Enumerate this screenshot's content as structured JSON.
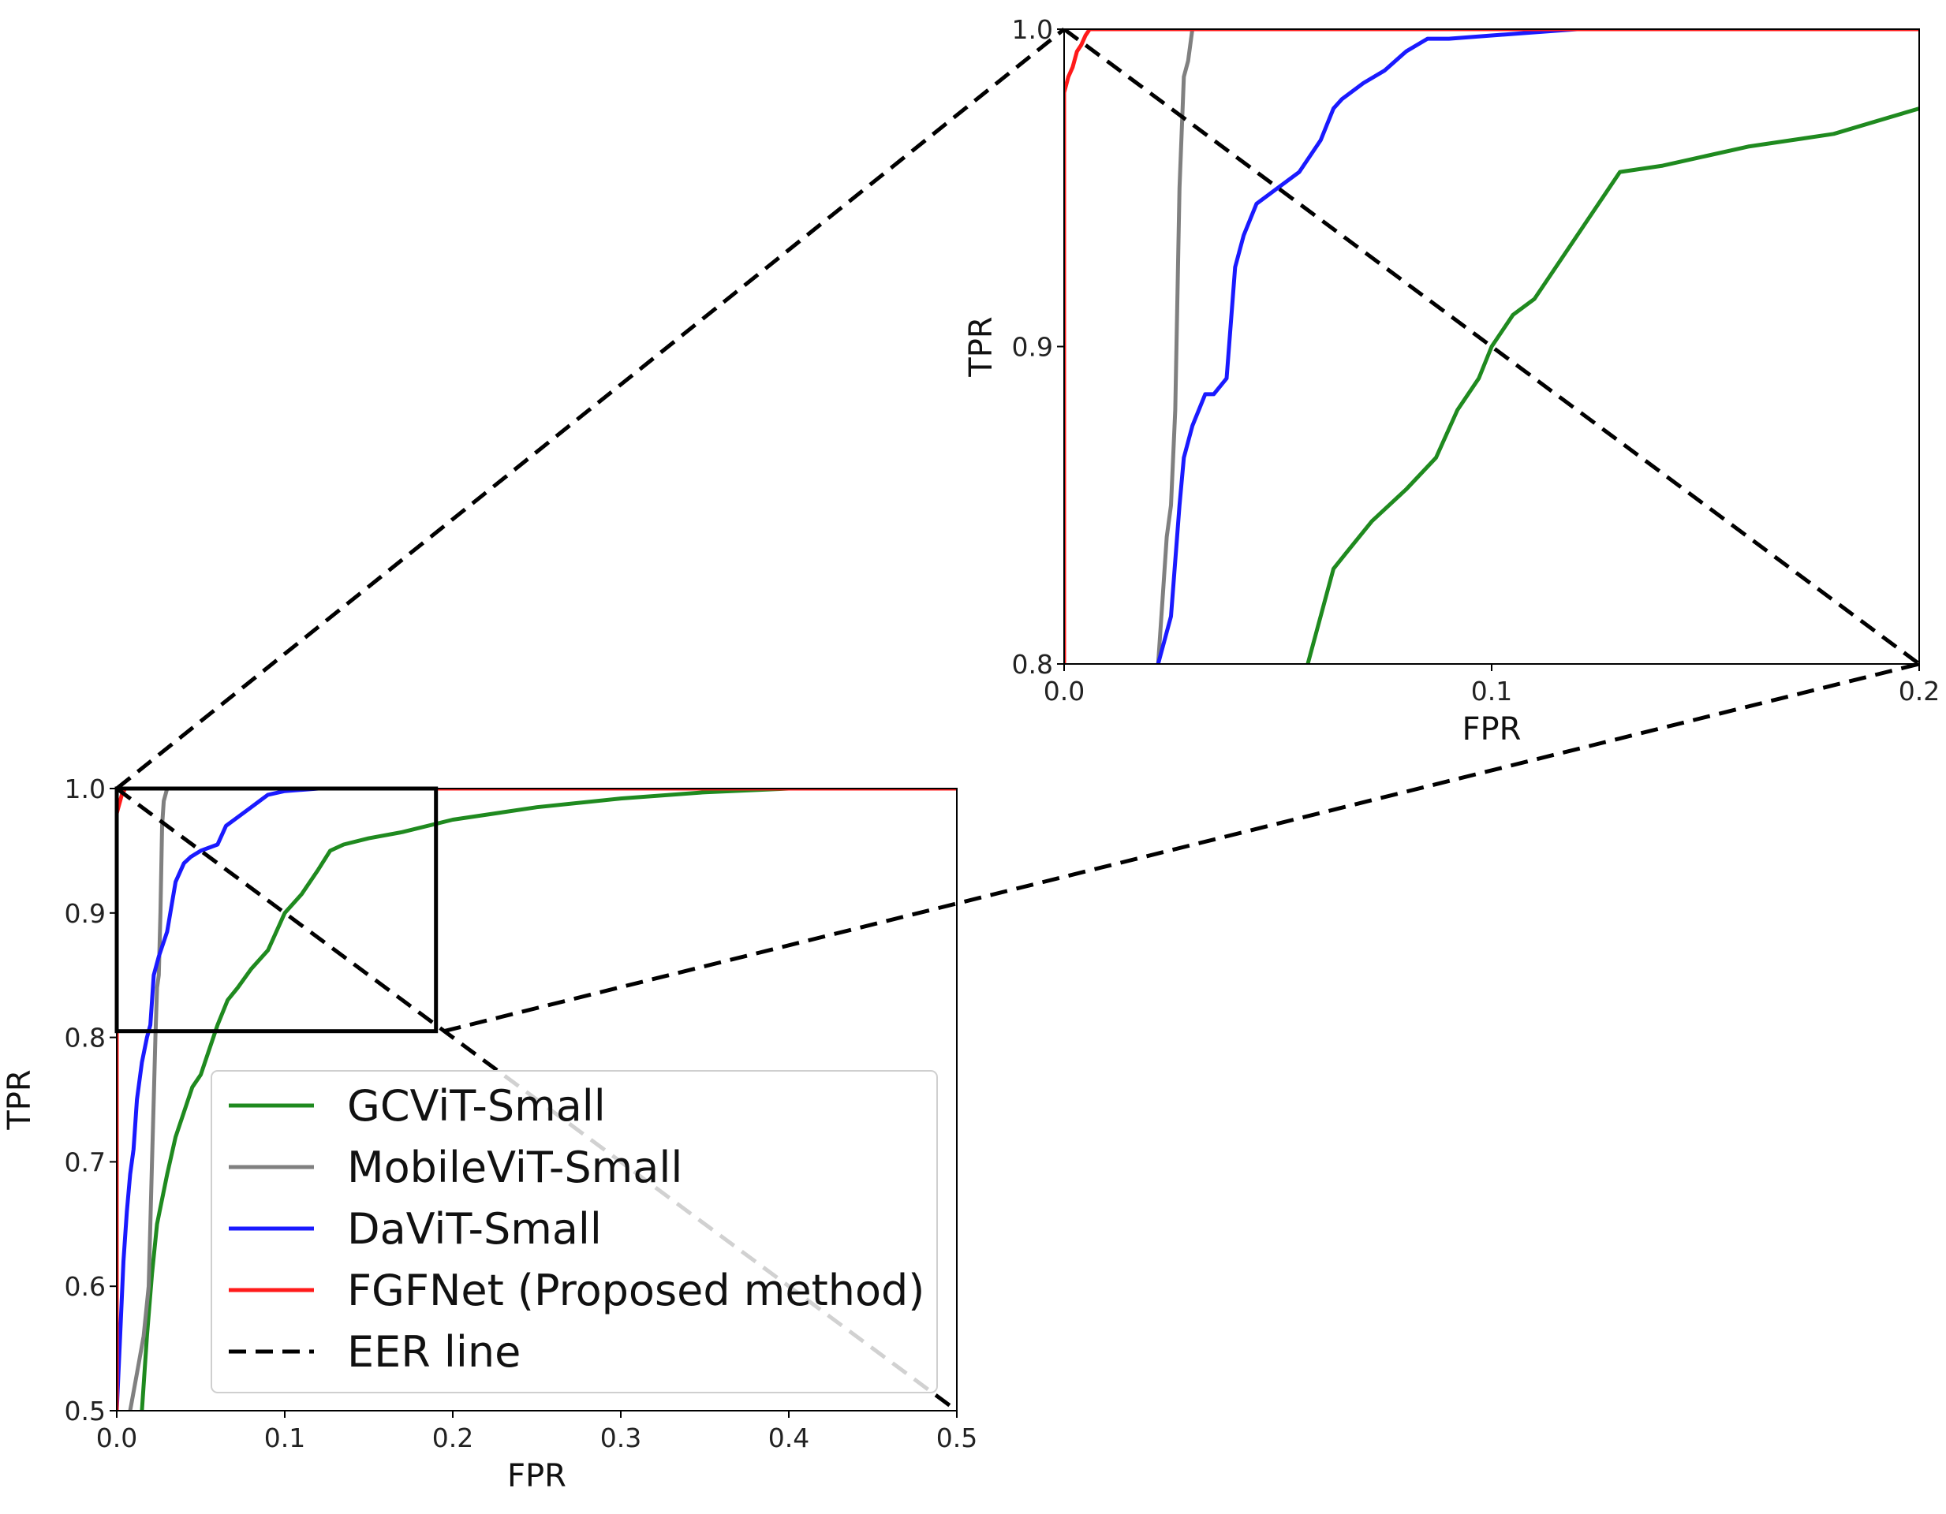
{
  "chart_data": [
    {
      "type": "line",
      "name": "main",
      "xlabel": "FPR",
      "ylabel": "TPR",
      "xlim": [
        0.0,
        0.5
      ],
      "ylim": [
        0.5,
        1.0
      ],
      "xticks": [
        "0.0",
        "0.1",
        "0.2",
        "0.3",
        "0.4",
        "0.5"
      ],
      "yticks": [
        "0.5",
        "0.6",
        "0.7",
        "0.8",
        "0.9",
        "1.0"
      ],
      "legend_position": "lower-right",
      "zoom_box": {
        "x": [
          0.0,
          0.19
        ],
        "y": [
          0.805,
          1.0
        ]
      },
      "series": [
        {
          "name": "GCViT-Small",
          "color": "#1f8a1f",
          "dash": "solid",
          "x": [
            0.015,
            0.018,
            0.021,
            0.024,
            0.027,
            0.03,
            0.035,
            0.04,
            0.045,
            0.05,
            0.055,
            0.06,
            0.066,
            0.072,
            0.08,
            0.09,
            0.1,
            0.11,
            0.12,
            0.127,
            0.135,
            0.15,
            0.17,
            0.2,
            0.25,
            0.3,
            0.35,
            0.4,
            0.5
          ],
          "y": [
            0.5,
            0.56,
            0.61,
            0.65,
            0.67,
            0.69,
            0.72,
            0.74,
            0.76,
            0.77,
            0.79,
            0.81,
            0.83,
            0.84,
            0.855,
            0.87,
            0.9,
            0.915,
            0.935,
            0.95,
            0.955,
            0.96,
            0.965,
            0.975,
            0.985,
            0.992,
            0.997,
            1.0,
            1.0
          ]
        },
        {
          "name": "MobileViT-Small",
          "color": "#808080",
          "dash": "solid",
          "x": [
            0.008,
            0.012,
            0.016,
            0.019,
            0.02,
            0.021,
            0.022,
            0.023,
            0.024,
            0.025,
            0.026,
            0.027,
            0.028,
            0.03,
            0.5
          ],
          "y": [
            0.5,
            0.53,
            0.56,
            0.6,
            0.65,
            0.7,
            0.75,
            0.8,
            0.84,
            0.85,
            0.9,
            0.97,
            0.99,
            1.0,
            1.0
          ]
        },
        {
          "name": "DaViT-Small",
          "color": "#1a1aff",
          "dash": "solid",
          "x": [
            0.0,
            0.002,
            0.004,
            0.006,
            0.008,
            0.01,
            0.012,
            0.015,
            0.018,
            0.02,
            0.022,
            0.025,
            0.03,
            0.035,
            0.04,
            0.044,
            0.05,
            0.06,
            0.065,
            0.07,
            0.08,
            0.09,
            0.1,
            0.12,
            0.13,
            0.5
          ],
          "y": [
            0.5,
            0.56,
            0.62,
            0.66,
            0.69,
            0.71,
            0.75,
            0.78,
            0.8,
            0.81,
            0.85,
            0.865,
            0.885,
            0.925,
            0.94,
            0.945,
            0.95,
            0.955,
            0.97,
            0.975,
            0.985,
            0.995,
            0.998,
            1.0,
            1.0,
            1.0
          ]
        },
        {
          "name": "FGFNet (Proposed method)",
          "color": "#ff1a1a",
          "dash": "solid",
          "x": [
            0.0,
            0.0,
            0.001,
            0.002,
            0.003,
            0.005,
            0.03,
            0.5
          ],
          "y": [
            0.5,
            0.98,
            0.985,
            0.99,
            0.995,
            1.0,
            1.0,
            1.0
          ]
        },
        {
          "name": "EER line",
          "color": "#000000",
          "dash": "dashed",
          "x": [
            0.0,
            0.5
          ],
          "y": [
            1.0,
            0.5
          ]
        }
      ]
    },
    {
      "type": "line",
      "name": "zoom-inset",
      "xlabel": "FPR",
      "ylabel": "TPR",
      "xlim": [
        0.0,
        0.2
      ],
      "ylim": [
        0.8,
        1.0
      ],
      "xticks": [
        "0.0",
        "0.1",
        "0.2"
      ],
      "yticks": [
        "0.8",
        "0.9",
        "1.0"
      ],
      "series": [
        {
          "name": "GCViT-Small",
          "color": "#1f8a1f",
          "dash": "solid",
          "x": [
            0.057,
            0.06,
            0.063,
            0.066,
            0.072,
            0.08,
            0.087,
            0.092,
            0.097,
            0.1,
            0.105,
            0.11,
            0.115,
            0.12,
            0.125,
            0.13,
            0.135,
            0.14,
            0.15,
            0.16,
            0.17,
            0.18,
            0.19,
            0.2
          ],
          "y": [
            0.8,
            0.815,
            0.83,
            0.835,
            0.845,
            0.855,
            0.865,
            0.88,
            0.89,
            0.9,
            0.91,
            0.915,
            0.925,
            0.935,
            0.945,
            0.955,
            0.956,
            0.957,
            0.96,
            0.963,
            0.965,
            0.967,
            0.971,
            0.975
          ]
        },
        {
          "name": "MobileViT-Small",
          "color": "#808080",
          "dash": "solid",
          "x": [
            0.022,
            0.023,
            0.024,
            0.025,
            0.026,
            0.027,
            0.028,
            0.029,
            0.03,
            0.2
          ],
          "y": [
            0.8,
            0.82,
            0.84,
            0.85,
            0.88,
            0.95,
            0.985,
            0.99,
            1.0,
            1.0
          ]
        },
        {
          "name": "DaViT-Small",
          "color": "#1a1aff",
          "dash": "solid",
          "x": [
            0.022,
            0.025,
            0.027,
            0.028,
            0.03,
            0.033,
            0.035,
            0.038,
            0.04,
            0.042,
            0.045,
            0.05,
            0.055,
            0.06,
            0.063,
            0.065,
            0.07,
            0.075,
            0.08,
            0.085,
            0.09,
            0.1,
            0.11,
            0.12,
            0.13,
            0.2
          ],
          "y": [
            0.8,
            0.815,
            0.85,
            0.865,
            0.875,
            0.885,
            0.885,
            0.89,
            0.925,
            0.935,
            0.945,
            0.95,
            0.955,
            0.965,
            0.975,
            0.978,
            0.983,
            0.987,
            0.993,
            0.997,
            0.997,
            0.998,
            0.999,
            1.0,
            1.0,
            1.0
          ]
        },
        {
          "name": "FGFNet (Proposed method)",
          "color": "#ff1a1a",
          "dash": "solid",
          "x": [
            0.0,
            0.0,
            0.001,
            0.002,
            0.003,
            0.004,
            0.005,
            0.006,
            0.03,
            0.2
          ],
          "y": [
            0.8,
            0.98,
            0.985,
            0.988,
            0.993,
            0.995,
            0.998,
            1.0,
            1.0,
            1.0
          ]
        },
        {
          "name": "EER line",
          "color": "#000000",
          "dash": "dashed",
          "x": [
            0.0,
            0.2
          ],
          "y": [
            1.0,
            0.8
          ]
        }
      ]
    }
  ],
  "legend": {
    "entries": [
      {
        "label": "GCViT-Small",
        "color": "#1f8a1f",
        "dash": "solid"
      },
      {
        "label": "MobileViT-Small",
        "color": "#808080",
        "dash": "solid"
      },
      {
        "label": "DaViT-Small",
        "color": "#1a1aff",
        "dash": "solid"
      },
      {
        "label": "FGFNet (Proposed method)",
        "color": "#ff1a1a",
        "dash": "solid"
      },
      {
        "label": "EER line",
        "color": "#000000",
        "dash": "dashed"
      }
    ]
  }
}
